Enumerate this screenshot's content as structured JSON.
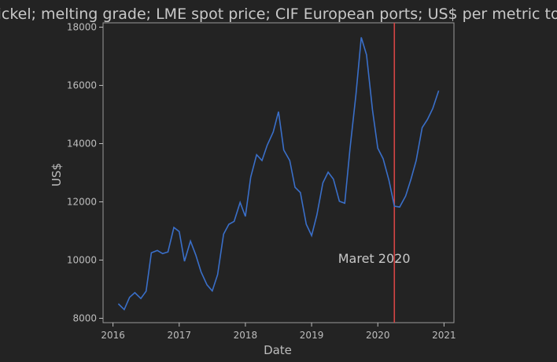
{
  "chart_data": {
    "type": "line",
    "title": "Nickel; melting grade; LME spot price; CIF European ports; US$ per metric ton",
    "xlabel": "Date",
    "ylabel": "US$",
    "xlim": [
      2015.85,
      2021.15
    ],
    "ylim": [
      7850,
      18150
    ],
    "x_ticks": [
      2016,
      2017,
      2018,
      2019,
      2020,
      2021
    ],
    "y_ticks": [
      8000,
      10000,
      12000,
      14000,
      16000,
      18000
    ],
    "grid": false,
    "line_color": "#3a6fc9",
    "marker_color": "#d64545",
    "series": [
      {
        "x": [
          2016.08,
          2016.17,
          2016.25,
          2016.33,
          2016.42,
          2016.5,
          2016.58,
          2016.67,
          2016.75,
          2016.83,
          2016.92,
          2017.0,
          2017.08,
          2017.17,
          2017.25,
          2017.33,
          2017.42,
          2017.5,
          2017.58,
          2017.67,
          2017.75,
          2017.83,
          2017.92,
          2018.0,
          2018.08,
          2018.17,
          2018.25,
          2018.33,
          2018.42,
          2018.5,
          2018.58,
          2018.67,
          2018.75,
          2018.83,
          2018.92,
          2019.0,
          2019.08,
          2019.17,
          2019.25,
          2019.33,
          2019.42,
          2019.5,
          2019.58,
          2019.67,
          2019.75,
          2019.83,
          2019.92,
          2020.0,
          2020.08,
          2020.17,
          2020.25,
          2020.33,
          2020.42,
          2020.5,
          2020.58,
          2020.67,
          2020.75,
          2020.83,
          2020.92
        ],
        "values": [
          8500,
          8300,
          8720,
          8880,
          8680,
          8930,
          10250,
          10330,
          10220,
          10280,
          11120,
          10980,
          9960,
          10650,
          10180,
          9600,
          9150,
          8940,
          9500,
          10890,
          11230,
          11330,
          11980,
          11500,
          12850,
          13620,
          13420,
          13950,
          14400,
          15100,
          13780,
          13420,
          12500,
          12320,
          11230,
          10840,
          11550,
          12650,
          13020,
          12780,
          12020,
          11950,
          13830,
          15700,
          17650,
          17050,
          15150,
          13840,
          13480,
          12730,
          11850,
          11820,
          12200,
          12770,
          13420,
          14550,
          14830,
          15210,
          15820
        ]
      }
    ],
    "vline": {
      "x": 2020.25
    },
    "annotation": {
      "text": "Maret 2020",
      "x": 2019.4,
      "y": 9900
    }
  }
}
